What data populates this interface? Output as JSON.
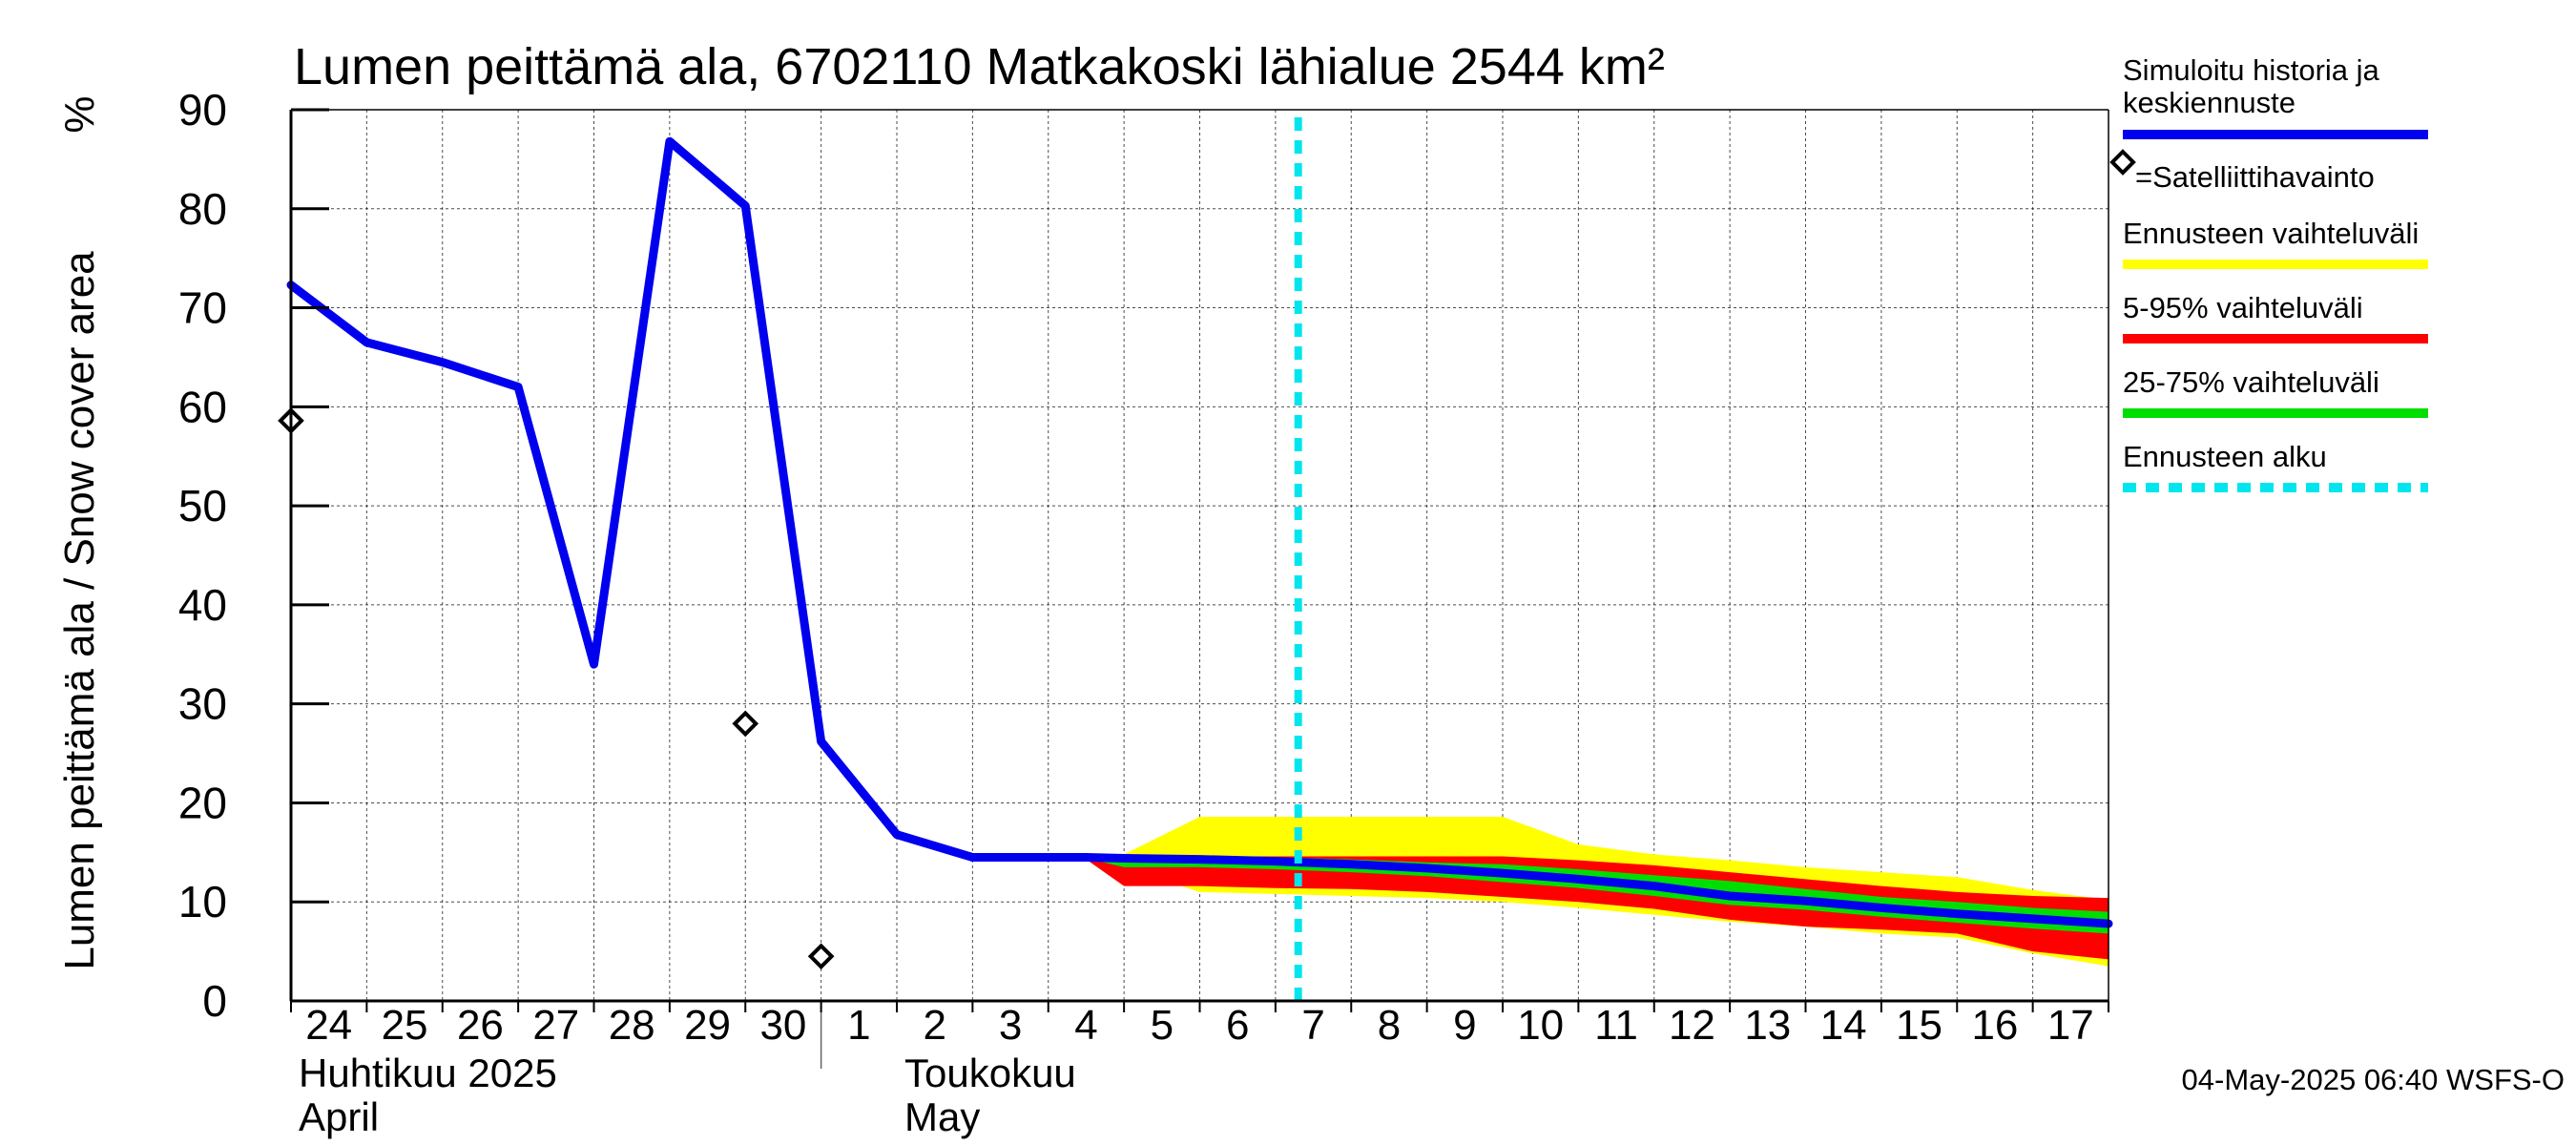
{
  "chart_data": {
    "type": "area",
    "title": "Lumen peittämä ala, 6702110 Matkakoski lähialue 2544 km²",
    "ylabel": "Lumen peittämä ala / Snow cover area",
    "yunit": "%",
    "ylim": [
      0,
      90
    ],
    "yticks": [
      0,
      10,
      20,
      30,
      40,
      50,
      60,
      70,
      80,
      90
    ],
    "x_dates": [
      "24",
      "25",
      "26",
      "27",
      "28",
      "29",
      "30",
      "1",
      "2",
      "3",
      "4",
      "5",
      "6",
      "7",
      "8",
      "9",
      "10",
      "11",
      "12",
      "13",
      "14",
      "15",
      "16",
      "17"
    ],
    "month_labels": [
      {
        "at": "24",
        "fi": "Huhtikuu  2025",
        "en": "April"
      },
      {
        "at": "2",
        "fi": "Toukokuu",
        "en": "May"
      }
    ],
    "grid": true,
    "forecast_start": 13.3,
    "series": [
      {
        "name": "Simuloitu historia ja keskiennuste",
        "color": "#0000ee",
        "x": [
          0,
          1,
          2,
          3,
          4,
          5,
          6,
          7,
          8,
          9,
          10,
          10.5,
          11,
          12,
          13,
          14,
          15,
          16,
          17,
          18,
          19,
          20,
          21,
          22,
          23,
          24
        ],
        "y": [
          72.3,
          66.5,
          64.5,
          62.0,
          34.0,
          86.8,
          80.3,
          26.2,
          16.8,
          14.5,
          14.5,
          14.5,
          14.4,
          14.3,
          14.1,
          13.8,
          13.4,
          12.9,
          12.3,
          11.6,
          10.6,
          10.1,
          9.4,
          8.8,
          8.3,
          7.8
        ]
      },
      {
        "name": "=Satelliittihavainto",
        "color": "#000000",
        "x": [
          0,
          6,
          7
        ],
        "y": [
          58.6,
          28.0,
          4.5
        ]
      }
    ],
    "bands": [
      {
        "name": "Ennusteen vaihteluväli",
        "color": "#ffff00",
        "x": [
          10.5,
          11,
          12,
          13,
          14,
          15,
          16,
          17,
          18,
          19,
          20,
          21,
          22,
          23,
          24
        ],
        "upper": [
          14.6,
          14.8,
          18.6,
          18.6,
          18.6,
          18.6,
          18.6,
          15.8,
          14.8,
          14.2,
          13.5,
          13.0,
          12.5,
          11.2,
          10.2
        ],
        "lower": [
          14.3,
          13.5,
          11.0,
          10.8,
          10.6,
          10.4,
          10.0,
          9.4,
          8.7,
          8.0,
          7.5,
          6.8,
          6.4,
          4.8,
          3.5
        ]
      },
      {
        "name": "5-95% vaihteluväli",
        "color": "#ff0000",
        "x": [
          10.5,
          11,
          12,
          13,
          14,
          15,
          16,
          17,
          18,
          19,
          20,
          21,
          22,
          23,
          24
        ],
        "upper": [
          14.6,
          14.6,
          14.6,
          14.6,
          14.6,
          14.6,
          14.6,
          14.2,
          13.7,
          13.0,
          12.3,
          11.6,
          11.0,
          10.6,
          10.4
        ],
        "lower": [
          14.3,
          11.6,
          11.6,
          11.4,
          11.3,
          11.0,
          10.5,
          10.0,
          9.3,
          8.2,
          7.5,
          7.2,
          6.8,
          5.0,
          4.2
        ]
      },
      {
        "name": "25-75% vaihteluväli",
        "color": "#00dd00",
        "x": [
          10.5,
          11,
          12,
          13,
          14,
          15,
          16,
          17,
          18,
          19,
          20,
          21,
          22,
          23,
          24
        ],
        "upper": [
          14.5,
          14.5,
          14.5,
          14.5,
          14.3,
          14.0,
          13.8,
          13.3,
          12.7,
          12.1,
          11.3,
          10.5,
          10.0,
          9.4,
          9.0
        ],
        "lower": [
          14.4,
          13.5,
          13.5,
          13.3,
          13.0,
          12.6,
          12.0,
          11.4,
          10.6,
          9.7,
          9.2,
          8.5,
          7.9,
          7.3,
          6.8
        ]
      }
    ],
    "legend": [
      {
        "label": "Simuloitu historia ja keskiennuste",
        "kind": "line",
        "color": "#0000ee"
      },
      {
        "label": "=Satelliittihavainto",
        "kind": "marker",
        "color": "#000000"
      },
      {
        "label": "Ennusteen vaihteluväli",
        "kind": "line",
        "color": "#ffff00"
      },
      {
        "label": "5-95% vaihteluväli",
        "kind": "line",
        "color": "#ff0000"
      },
      {
        "label": "25-75% vaihteluväli",
        "kind": "line",
        "color": "#00dd00"
      },
      {
        "label": "Ennusteen alku",
        "kind": "dashed",
        "color": "#00e5ee"
      }
    ],
    "legend_placement": "right",
    "footer": "04-May-2025 06:40 WSFS-O"
  }
}
